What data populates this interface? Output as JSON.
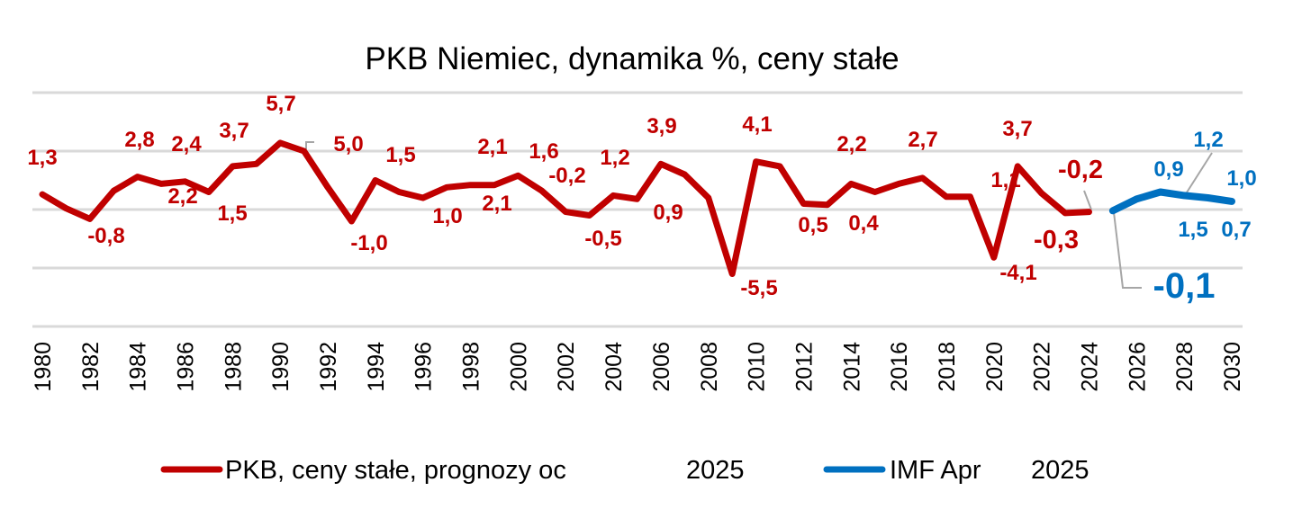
{
  "chart_data": {
    "type": "line",
    "title": "PKB Niemiec, dynamika %, ceny stałe",
    "xlabel": "",
    "ylabel": "",
    "ylim": [
      -10,
      10
    ],
    "grid": true,
    "y_gridlines": [
      10,
      5,
      0,
      -5,
      -10
    ],
    "x_tick_labels": [
      "1980",
      "1982",
      "1984",
      "1986",
      "1988",
      "1990",
      "1992",
      "1994",
      "1996",
      "1998",
      "2000",
      "2002",
      "2004",
      "2006",
      "2008",
      "2010",
      "2012",
      "2014",
      "2016",
      "2018",
      "2020",
      "2022",
      "2024",
      "2026",
      "2028",
      "2030"
    ],
    "legend_position": "bottom",
    "series": [
      {
        "name": "PKB, ceny stałe, prognozy od 2025",
        "legend_text": "PKB, ceny stałe, prognozy oc",
        "legend_suffix": "2025",
        "color": "#C00000",
        "x": [
          1980,
          1981,
          1982,
          1983,
          1984,
          1985,
          1986,
          1987,
          1988,
          1989,
          1990,
          1991,
          1992,
          1993,
          1994,
          1995,
          1996,
          1997,
          1998,
          1999,
          2000,
          2001,
          2002,
          2003,
          2004,
          2005,
          2006,
          2007,
          2008,
          2009,
          2010,
          2011,
          2012,
          2013,
          2014,
          2015,
          2016,
          2017,
          2018,
          2019,
          2020,
          2021,
          2022,
          2023,
          2024
        ],
        "values": [
          1.3,
          0.1,
          -0.8,
          1.6,
          2.8,
          2.2,
          2.4,
          1.5,
          3.7,
          3.9,
          5.7,
          5.0,
          1.9,
          -1.0,
          2.5,
          1.5,
          1.0,
          1.9,
          2.1,
          2.1,
          2.9,
          1.6,
          -0.2,
          -0.5,
          1.2,
          0.9,
          3.9,
          3.0,
          1.0,
          -5.5,
          4.1,
          3.7,
          0.5,
          0.4,
          2.2,
          1.5,
          2.2,
          2.7,
          1.1,
          1.1,
          -4.1,
          3.7,
          1.4,
          -0.3,
          -0.2
        ]
      },
      {
        "name": "IMF Apr 2025",
        "legend_text": "IMF Apr",
        "legend_suffix": "2025",
        "color": "#0070C0",
        "x": [
          2025,
          2026,
          2027,
          2028,
          2029,
          2030
        ],
        "values": [
          -0.1,
          0.9,
          1.5,
          1.2,
          1.0,
          0.7
        ]
      }
    ],
    "data_labels": [
      {
        "text": "1,3",
        "series": 0
      },
      {
        "text": "-0,8",
        "series": 0
      },
      {
        "text": "2,8",
        "series": 0
      },
      {
        "text": "2,2",
        "series": 0
      },
      {
        "text": "2,4",
        "series": 0
      },
      {
        "text": "1,5",
        "series": 0
      },
      {
        "text": "3,7",
        "series": 0
      },
      {
        "text": "5,7",
        "series": 0
      },
      {
        "text": "5,0",
        "series": 0
      },
      {
        "text": "-1,0",
        "series": 0
      },
      {
        "text": "1,5",
        "series": 0
      },
      {
        "text": "1,0",
        "series": 0
      },
      {
        "text": "2,1",
        "series": 0
      },
      {
        "text": "2,1",
        "series": 0
      },
      {
        "text": "1,6",
        "series": 0
      },
      {
        "text": "-0,2",
        "series": 0
      },
      {
        "text": "-0,5",
        "series": 0
      },
      {
        "text": "1,2",
        "series": 0
      },
      {
        "text": "3,9",
        "series": 0
      },
      {
        "text": "0,9",
        "series": 0
      },
      {
        "text": "4,1",
        "series": 0
      },
      {
        "text": "-5,5",
        "series": 0
      },
      {
        "text": "0,5",
        "series": 0
      },
      {
        "text": "2,2",
        "series": 0
      },
      {
        "text": "0,4",
        "series": 0
      },
      {
        "text": "2,7",
        "series": 0
      },
      {
        "text": "1,1",
        "series": 0
      },
      {
        "text": "3,7",
        "series": 0
      },
      {
        "text": "-4,1",
        "series": 0
      },
      {
        "text": "-0,2",
        "series": 0
      },
      {
        "text": "-0,3",
        "series": 0
      },
      {
        "text": "-0,1",
        "series": 1
      },
      {
        "text": "0,9",
        "series": 1
      },
      {
        "text": "1,2",
        "series": 1
      },
      {
        "text": "1,0",
        "series": 1
      },
      {
        "text": "1,5",
        "series": 1
      },
      {
        "text": "0,7",
        "series": 1
      }
    ]
  }
}
